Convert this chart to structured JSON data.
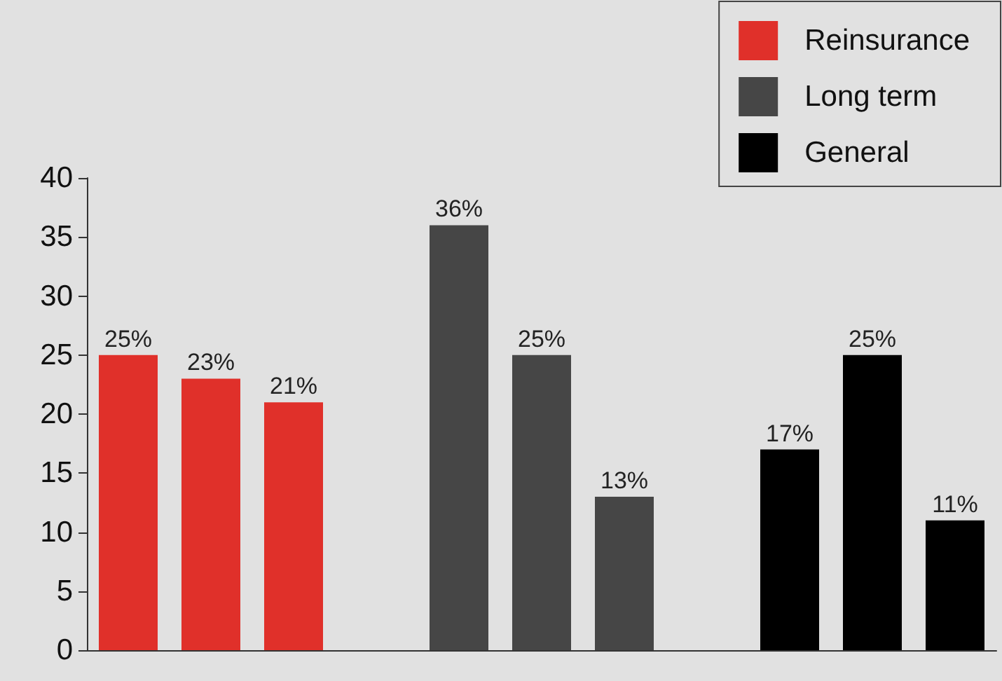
{
  "chart_data": {
    "type": "bar",
    "categories": [
      null,
      null,
      null,
      null,
      null,
      null,
      null,
      null,
      null,
      null,
      null
    ],
    "series": [
      {
        "name": "Reinsurance",
        "color": "#e0302a",
        "values": [
          25,
          23,
          21,
          null,
          null,
          null,
          null,
          null,
          null,
          null,
          null
        ],
        "value_labels": [
          "25%",
          "23%",
          "21%",
          null,
          null,
          null,
          null,
          null,
          null,
          null,
          null
        ]
      },
      {
        "name": "Long term",
        "color": "#464646",
        "values": [
          null,
          null,
          null,
          null,
          36,
          25,
          13,
          null,
          null,
          null,
          null
        ],
        "value_labels": [
          null,
          null,
          null,
          null,
          "36%",
          "25%",
          "13%",
          null,
          null,
          null,
          null
        ]
      },
      {
        "name": "General",
        "color": "#000000",
        "values": [
          null,
          null,
          null,
          null,
          null,
          null,
          null,
          null,
          17,
          25,
          11
        ],
        "value_labels": [
          null,
          null,
          null,
          null,
          null,
          null,
          null,
          null,
          "17%",
          "25%",
          "11%"
        ]
      }
    ],
    "ylim": [
      0,
      40
    ],
    "yticks": [
      0,
      5,
      10,
      15,
      20,
      25,
      30,
      35,
      40
    ],
    "grid": false,
    "legend": "top right"
  }
}
